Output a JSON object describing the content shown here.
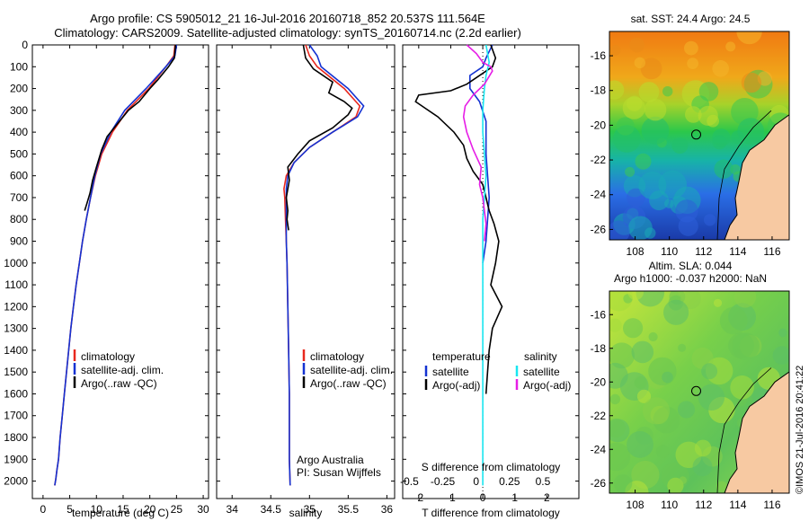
{
  "title_line1": "Argo profile: CS 5905012_21 16-Jul-2016 20160718_852 20.537S 111.564E",
  "title_line2": "Climatology: CARS2009. Satellite-adjusted climatology: synTS_20160714.nc (2.2d earlier)",
  "watermark": "©IMOS 21-Jul-2016 20:41:22",
  "colors": {
    "climatology": "#e8281e",
    "satellite": "#1432d2",
    "argo": "#000000",
    "sat_sal": "#19e6f0",
    "argo_sal": "#e61ee6"
  },
  "chart_data": [
    {
      "type": "line",
      "xlabel": "temperature (deg C)",
      "ylabel": "",
      "xlim": [
        -2,
        31
      ],
      "ylim": [
        2080,
        0
      ],
      "xticks": [
        0,
        5,
        10,
        15,
        20,
        25,
        30
      ],
      "yticks": [
        0,
        100,
        200,
        300,
        400,
        500,
        600,
        700,
        800,
        900,
        1000,
        1100,
        1200,
        1300,
        1400,
        1500,
        1600,
        1700,
        1800,
        1900,
        2000
      ],
      "legend_position": "lower-center",
      "series": [
        {
          "name": "climatology",
          "color": "#e8281e",
          "x": [
            24.7,
            24.5,
            23.0,
            19.8,
            15.8,
            13.0,
            11.0,
            9.8,
            8.9,
            8.1,
            7.4,
            6.8,
            6.2,
            5.7,
            5.2,
            4.8,
            4.4,
            4.0,
            3.6,
            3.2,
            2.9,
            2.6,
            2.4,
            2.2
          ],
          "y": [
            0,
            50,
            100,
            200,
            300,
            400,
            500,
            600,
            700,
            800,
            900,
            1000,
            1100,
            1200,
            1300,
            1400,
            1500,
            1600,
            1700,
            1800,
            1900,
            1950,
            1990,
            2020
          ]
        },
        {
          "name": "satellite-adj. clim.",
          "color": "#1432d2",
          "x": [
            25.0,
            24.7,
            23.0,
            19.3,
            15.3,
            12.7,
            10.8,
            9.7,
            8.9,
            8.1,
            7.4,
            6.8,
            6.2,
            5.7,
            5.2,
            4.8,
            4.4,
            4.0,
            3.6,
            3.2,
            2.9,
            2.6,
            2.4,
            2.2
          ],
          "y": [
            0,
            50,
            100,
            200,
            300,
            400,
            500,
            600,
            700,
            800,
            900,
            1000,
            1100,
            1200,
            1300,
            1400,
            1500,
            1600,
            1700,
            1800,
            1900,
            1950,
            1990,
            2020
          ]
        },
        {
          "name": "Argo(..raw -QC)",
          "color": "#000000",
          "x": [
            24.8,
            24.6,
            23.5,
            21.5,
            20.0,
            18.0,
            16.0,
            14.0,
            12.0,
            11.0,
            10.0,
            9.3,
            8.8,
            8.3,
            7.8
          ],
          "y": [
            0,
            60,
            100,
            160,
            200,
            260,
            300,
            360,
            420,
            480,
            560,
            620,
            680,
            720,
            760
          ]
        }
      ]
    },
    {
      "type": "line",
      "xlabel": "salinity",
      "xlim": [
        33.8,
        36.1
      ],
      "ylim": [
        2080,
        0
      ],
      "xticks": [
        34,
        34.5,
        35,
        35.5,
        36
      ],
      "legend_position": "lower-center",
      "annotations": [
        "Argo Australia",
        "PI: Susan Wijffels"
      ],
      "series": [
        {
          "name": "climatology",
          "color": "#e8281e",
          "x": [
            34.95,
            35.0,
            35.1,
            35.45,
            35.65,
            35.6,
            35.3,
            35.0,
            34.8,
            34.7,
            34.67,
            34.68,
            34.69,
            34.7,
            34.71,
            34.72,
            34.73,
            34.74,
            34.74,
            34.74,
            34.74,
            34.75
          ],
          "y": [
            0,
            50,
            100,
            200,
            280,
            330,
            400,
            470,
            540,
            600,
            660,
            700,
            800,
            900,
            1000,
            1200,
            1400,
            1600,
            1700,
            1800,
            1900,
            2020
          ]
        },
        {
          "name": "satellite-adj. clim.",
          "color": "#1432d2",
          "x": [
            35.0,
            35.1,
            35.15,
            35.5,
            35.7,
            35.62,
            35.3,
            35.0,
            34.8,
            34.72,
            34.7,
            34.7,
            34.7,
            34.7,
            34.71,
            34.72,
            34.73,
            34.74,
            34.74,
            34.74,
            34.74,
            34.75
          ],
          "y": [
            0,
            50,
            100,
            200,
            280,
            330,
            400,
            470,
            540,
            600,
            660,
            700,
            800,
            900,
            1000,
            1200,
            1400,
            1600,
            1700,
            1800,
            1900,
            2020
          ]
        },
        {
          "name": "Argo(..raw -QC)",
          "color": "#000000",
          "x": [
            34.92,
            34.95,
            35.05,
            35.3,
            35.25,
            35.45,
            35.55,
            35.5,
            35.3,
            35.0,
            34.85,
            34.72,
            34.74,
            34.7,
            34.72,
            34.71,
            34.73
          ],
          "y": [
            0,
            60,
            110,
            170,
            220,
            260,
            290,
            320,
            380,
            440,
            500,
            560,
            620,
            700,
            760,
            800,
            850
          ]
        }
      ]
    },
    {
      "type": "line",
      "xlabel": "T difference from climatology",
      "title": "S difference from climatology",
      "xlim": [
        -2.5,
        3.0
      ],
      "xticks": [
        -2,
        -1,
        0,
        1,
        2
      ],
      "x2ticks": [
        -0.5,
        -0.25,
        0,
        0.25,
        0.5
      ],
      "ylim": [
        2080,
        0
      ],
      "legend": {
        "temperature_header": "temperature",
        "salinity_header": "salinity",
        "temperature": [
          "satellite",
          "Argo(-adj)"
        ],
        "salinity": [
          "satellite",
          "Argo(-adj)"
        ]
      },
      "series": [
        {
          "name": "temperature satellite",
          "color": "#1432d2",
          "x": [
            0.3,
            0.2,
            0.1,
            0.0,
            -0.4,
            -0.4,
            -0.1,
            0.1,
            0.1,
            0.2,
            0.1,
            0.0
          ],
          "y": [
            0,
            30,
            60,
            100,
            140,
            200,
            260,
            350,
            500,
            700,
            900,
            1000
          ]
        },
        {
          "name": "temperature Argo(-adj)",
          "color": "#000000",
          "x": [
            0.25,
            0.4,
            0.3,
            -0.5,
            -1.0,
            -2.0,
            -2.1,
            -1.8,
            -1.4,
            -0.9,
            -0.6,
            -0.5,
            -0.3,
            0.0,
            0.1,
            0.2,
            0.35,
            0.5,
            0.4,
            0.25,
            0.6,
            0.3,
            0.2,
            0.15,
            0.1
          ],
          "y": [
            0,
            60,
            100,
            180,
            210,
            230,
            260,
            290,
            330,
            400,
            460,
            520,
            580,
            640,
            700,
            760,
            820,
            900,
            1000,
            1100,
            1200,
            1300,
            1400,
            1500,
            1600
          ]
        },
        {
          "name": "salinity satellite",
          "color": "#19e6f0",
          "x": [
            0.1,
            0.2,
            0.1,
            0.05,
            0.0,
            0.0,
            0.05,
            0.1,
            0.05,
            0.0,
            0.0,
            0.0
          ],
          "y": [
            0,
            80,
            140,
            200,
            300,
            400,
            500,
            600,
            700,
            800,
            1000,
            2020
          ]
        },
        {
          "name": "salinity Argo(-adj)",
          "color": "#e61ee6",
          "x": [
            -0.5,
            -0.2,
            0.0,
            0.25,
            0.3,
            0.05,
            -0.3,
            -0.55,
            -0.6,
            -0.5,
            -0.3,
            -0.05,
            -0.1,
            0.0,
            0.05,
            0.1,
            0.05
          ],
          "y": [
            0,
            40,
            80,
            100,
            120,
            180,
            230,
            280,
            330,
            400,
            480,
            560,
            640,
            700,
            760,
            820,
            900
          ]
        }
      ]
    },
    {
      "type": "heatmap",
      "title": "sat. SST: 24.4  Argo: 24.5",
      "xticks": [
        108,
        110,
        112,
        114,
        116
      ],
      "yticks": [
        -16,
        -18,
        -20,
        -22,
        -24,
        -26
      ],
      "xlim": [
        106.5,
        117
      ],
      "ylim": [
        -26.6,
        -14.6
      ],
      "argo_position": [
        111.564,
        -20.537
      ]
    },
    {
      "type": "heatmap",
      "title_line1": "Altim. SLA: 0.044",
      "title_line2": "Argo h1000: -0.037 h2000: NaN",
      "xticks": [
        108,
        110,
        112,
        114,
        116
      ],
      "yticks": [
        -16,
        -18,
        -20,
        -22,
        -24,
        -26
      ],
      "xlim": [
        106.5,
        117
      ],
      "ylim": [
        -26.6,
        -14.6
      ],
      "argo_position": [
        111.564,
        -20.537
      ]
    }
  ]
}
